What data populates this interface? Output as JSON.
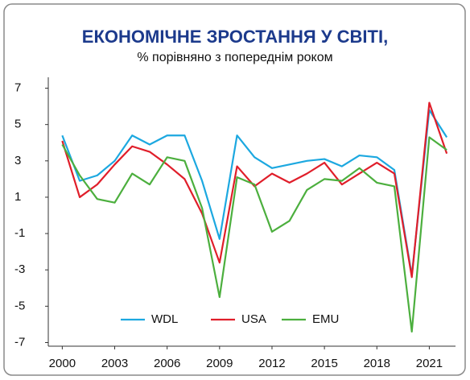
{
  "chart_data": {
    "type": "line",
    "title": "ЕКОНОМІЧНЕ ЗРОСТАННЯ У СВІТІ,",
    "subtitle": "% порівняно з попереднім роком",
    "x": [
      2000,
      2001,
      2002,
      2003,
      2004,
      2005,
      2006,
      2007,
      2008,
      2009,
      2010,
      2011,
      2012,
      2013,
      2014,
      2015,
      2016,
      2017,
      2018,
      2019,
      2020,
      2021,
      2022
    ],
    "series": [
      {
        "name": "WDL",
        "color": "#1ca8e0",
        "values": [
          4.4,
          1.9,
          2.2,
          3.0,
          4.4,
          3.9,
          4.4,
          4.4,
          1.9,
          -1.3,
          4.4,
          3.2,
          2.6,
          2.8,
          3.0,
          3.1,
          2.7,
          3.3,
          3.2,
          2.5,
          -3.3,
          5.8,
          4.3
        ]
      },
      {
        "name": "USA",
        "color": "#e01e2a",
        "values": [
          4.1,
          1.0,
          1.7,
          2.8,
          3.8,
          3.5,
          2.8,
          2.0,
          0.1,
          -2.6,
          2.7,
          1.6,
          2.3,
          1.8,
          2.3,
          2.9,
          1.7,
          2.3,
          2.9,
          2.3,
          -3.4,
          6.2,
          3.4
        ]
      },
      {
        "name": "EMU",
        "color": "#4caf3e",
        "values": [
          3.9,
          2.2,
          0.9,
          0.7,
          2.3,
          1.7,
          3.2,
          3.0,
          0.4,
          -4.5,
          2.1,
          1.7,
          -0.9,
          -0.3,
          1.4,
          2.0,
          1.9,
          2.6,
          1.8,
          1.6,
          -6.4,
          4.3,
          3.6
        ]
      }
    ],
    "xlim": [
      1999.2,
      2022.5
    ],
    "xticks": [
      2000,
      2003,
      2006,
      2009,
      2012,
      2015,
      2018,
      2021
    ],
    "ylim": [
      -7.2,
      7.6
    ],
    "yticks": [
      7,
      5,
      3,
      1,
      -1,
      -3,
      -5,
      -7
    ],
    "legend": "bottom"
  }
}
